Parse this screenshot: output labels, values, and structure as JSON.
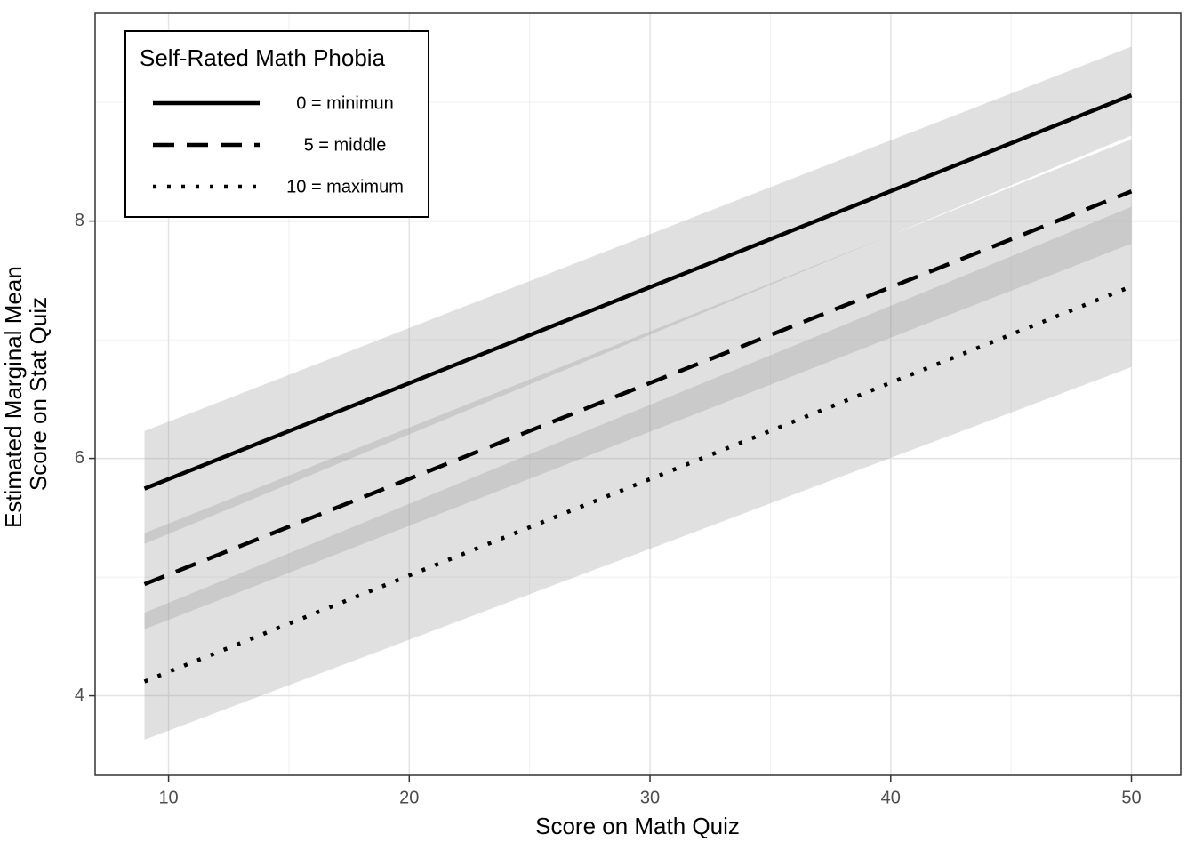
{
  "chart_data": {
    "type": "line-ribbon",
    "xlabel": "Score on Math Quiz",
    "ylabel": [
      "Estimated Marginal Mean",
      "Score on Stat Quiz"
    ],
    "legend_title": "Self-Rated Math Phobia",
    "legend_position": "top-left",
    "x": [
      9,
      50
    ],
    "series": [
      {
        "name": "0 = minimun",
        "color": "#000000",
        "dash": "solid",
        "values": [
          5.745,
          9.06
        ],
        "lower": [
          5.28,
          8.72
        ],
        "upper": [
          6.23,
          9.47
        ]
      },
      {
        "name": "5 = middle",
        "color": "#000000",
        "dash": "dashed",
        "values": [
          4.94,
          8.25
        ],
        "lower": [
          4.56,
          7.81
        ],
        "upper": [
          5.37,
          8.69
        ]
      },
      {
        "name": "10 = maximum",
        "color": "#000000",
        "dash": "dotted",
        "values": [
          4.12,
          7.45
        ],
        "lower": [
          3.63,
          6.77
        ],
        "upper": [
          4.7,
          8.12
        ]
      }
    ],
    "ribbon_color": "#999999",
    "xlim": [
      6.95,
      52.05
    ],
    "xticks": [
      10,
      20,
      30,
      40,
      50
    ],
    "ylim": [
      3.33,
      9.75
    ],
    "yticks": [
      4,
      6,
      8
    ],
    "grid": true
  }
}
